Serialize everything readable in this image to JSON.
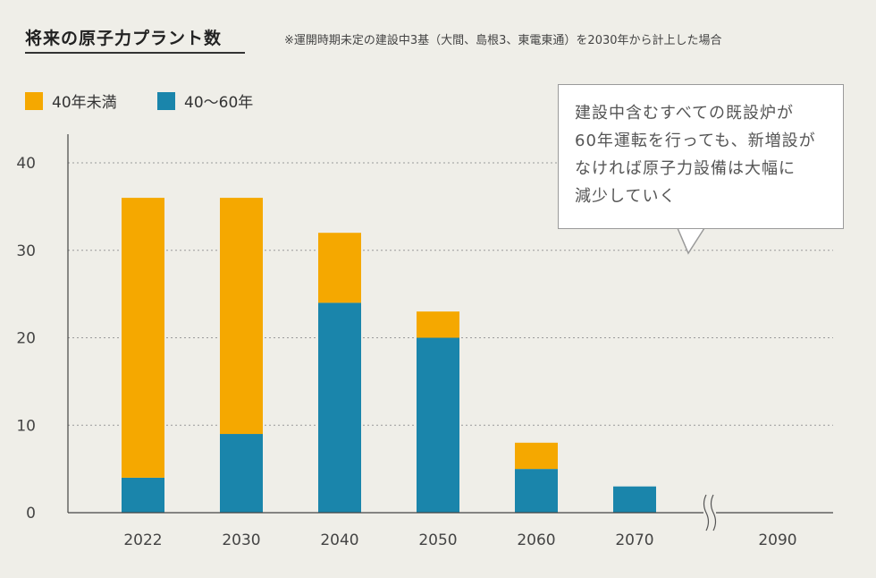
{
  "header": {
    "title": "将来の原子力プラント数",
    "note": "※運開時期未定の建設中3基（大間、島根3、東電東通）を2030年から計上した場合"
  },
  "callout": {
    "lines": [
      "建設中含むすべての既設炉が",
      "60年運転を行っても、新増設が",
      "なければ原子力設備は大幅に",
      "減少していく"
    ]
  },
  "chart_data": {
    "type": "bar",
    "stacked": true,
    "categories": [
      "2022",
      "2030",
      "2040",
      "2050",
      "2060",
      "2070",
      "2090"
    ],
    "series": [
      {
        "name": "40〜60年",
        "color": "#1a85ab",
        "values": [
          4,
          9,
          24,
          20,
          5,
          3,
          0
        ]
      },
      {
        "name": "40年未満",
        "color": "#f5a800",
        "values": [
          32,
          27,
          8,
          3,
          3,
          0,
          0
        ]
      }
    ],
    "ylim": [
      0,
      40
    ],
    "yticks": [
      0,
      10,
      20,
      30,
      40
    ],
    "grid": true,
    "legend_position": "top-left",
    "axis_break": "between 2070 and 2090"
  }
}
